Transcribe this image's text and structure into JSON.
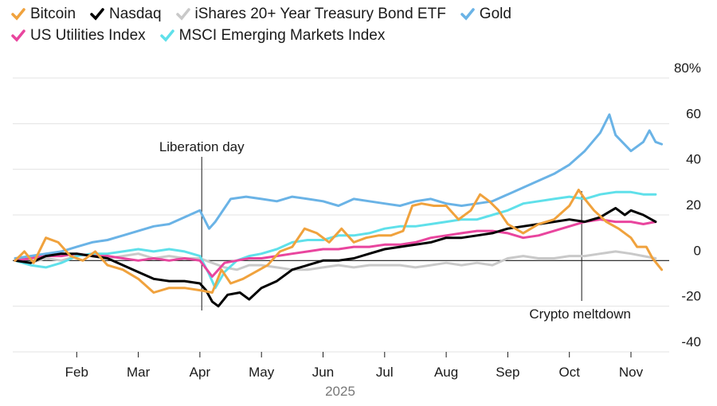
{
  "chart_data": {
    "type": "line",
    "title": "",
    "xlabel": "2025",
    "ylabel": "",
    "ylim": [
      -40,
      80
    ],
    "y_ticks": [
      {
        "value": 80,
        "label": "80%"
      },
      {
        "value": 60,
        "label": "60"
      },
      {
        "value": 40,
        "label": "40"
      },
      {
        "value": 20,
        "label": "20"
      },
      {
        "value": 0,
        "label": "0"
      },
      {
        "value": -20,
        "label": "-20"
      },
      {
        "value": -40,
        "label": "-40"
      }
    ],
    "x_ticks": [
      "Feb",
      "Mar",
      "Apr",
      "May",
      "Jun",
      "Jul",
      "Aug",
      "Sep",
      "Oct",
      "Nov"
    ],
    "year_label": "2025",
    "annotations": [
      {
        "label": "Liberation day",
        "month": 3.03
      },
      {
        "label": "Crypto meltdown",
        "month": 9.2
      }
    ],
    "series": [
      {
        "name": "iShares 20+ Year Treasury Bond ETF",
        "color": "#c9c9c9",
        "points": [
          [
            0.0,
            0
          ],
          [
            0.25,
            -1
          ],
          [
            0.5,
            1
          ],
          [
            0.75,
            0
          ],
          [
            1.0,
            2
          ],
          [
            1.25,
            3
          ],
          [
            1.5,
            1
          ],
          [
            1.75,
            2
          ],
          [
            2.0,
            3
          ],
          [
            2.25,
            1
          ],
          [
            2.5,
            2
          ],
          [
            2.75,
            1
          ],
          [
            3.0,
            1
          ],
          [
            3.2,
            -1
          ],
          [
            3.4,
            -3
          ],
          [
            3.6,
            -4
          ],
          [
            3.8,
            -2
          ],
          [
            4.0,
            -2
          ],
          [
            4.25,
            -3
          ],
          [
            4.5,
            -4
          ],
          [
            4.75,
            -4
          ],
          [
            5.0,
            -3
          ],
          [
            5.25,
            -2
          ],
          [
            5.5,
            -3
          ],
          [
            5.75,
            -2
          ],
          [
            6.0,
            -2
          ],
          [
            6.25,
            -2
          ],
          [
            6.5,
            -3
          ],
          [
            6.75,
            -2
          ],
          [
            7.0,
            -1
          ],
          [
            7.25,
            -2
          ],
          [
            7.5,
            -1
          ],
          [
            7.75,
            -2
          ],
          [
            8.0,
            1
          ],
          [
            8.25,
            2
          ],
          [
            8.5,
            1
          ],
          [
            8.75,
            1
          ],
          [
            9.0,
            2
          ],
          [
            9.25,
            2
          ],
          [
            9.5,
            3
          ],
          [
            9.75,
            4
          ],
          [
            10.0,
            3
          ],
          [
            10.2,
            2
          ],
          [
            10.4,
            1
          ]
        ]
      },
      {
        "name": "MSCI Emerging Markets Index",
        "color": "#5fe0ea",
        "points": [
          [
            0.0,
            0
          ],
          [
            0.25,
            -2
          ],
          [
            0.5,
            -3
          ],
          [
            0.75,
            -1
          ],
          [
            1.0,
            2
          ],
          [
            1.25,
            3
          ],
          [
            1.5,
            3
          ],
          [
            1.75,
            4
          ],
          [
            2.0,
            5
          ],
          [
            2.25,
            4
          ],
          [
            2.5,
            5
          ],
          [
            2.75,
            4
          ],
          [
            3.0,
            2
          ],
          [
            3.15,
            -6
          ],
          [
            3.25,
            -12
          ],
          [
            3.4,
            -5
          ],
          [
            3.6,
            0
          ],
          [
            3.8,
            2
          ],
          [
            4.0,
            3
          ],
          [
            4.25,
            5
          ],
          [
            4.5,
            8
          ],
          [
            4.75,
            9
          ],
          [
            5.0,
            9
          ],
          [
            5.25,
            11
          ],
          [
            5.5,
            11
          ],
          [
            5.75,
            12
          ],
          [
            6.0,
            14
          ],
          [
            6.25,
            15
          ],
          [
            6.5,
            15
          ],
          [
            6.75,
            16
          ],
          [
            7.0,
            17
          ],
          [
            7.25,
            18
          ],
          [
            7.5,
            18
          ],
          [
            7.75,
            20
          ],
          [
            8.0,
            22
          ],
          [
            8.25,
            25
          ],
          [
            8.5,
            26
          ],
          [
            8.75,
            27
          ],
          [
            9.0,
            28
          ],
          [
            9.25,
            27
          ],
          [
            9.5,
            29
          ],
          [
            9.75,
            30
          ],
          [
            10.0,
            30
          ],
          [
            10.2,
            29
          ],
          [
            10.4,
            29
          ]
        ]
      },
      {
        "name": "US Utilities Index",
        "color": "#e9459e",
        "points": [
          [
            0.0,
            0
          ],
          [
            0.25,
            1
          ],
          [
            0.5,
            2
          ],
          [
            0.75,
            2
          ],
          [
            1.0,
            3
          ],
          [
            1.25,
            2
          ],
          [
            1.5,
            2
          ],
          [
            1.75,
            1
          ],
          [
            2.0,
            0
          ],
          [
            2.25,
            1
          ],
          [
            2.5,
            0
          ],
          [
            2.75,
            1
          ],
          [
            3.0,
            0
          ],
          [
            3.2,
            -7
          ],
          [
            3.4,
            -1
          ],
          [
            3.6,
            0
          ],
          [
            3.8,
            1
          ],
          [
            4.0,
            1
          ],
          [
            4.25,
            2
          ],
          [
            4.5,
            3
          ],
          [
            4.75,
            4
          ],
          [
            5.0,
            5
          ],
          [
            5.25,
            5
          ],
          [
            5.5,
            6
          ],
          [
            5.75,
            6
          ],
          [
            6.0,
            7
          ],
          [
            6.25,
            7
          ],
          [
            6.5,
            8
          ],
          [
            6.75,
            10
          ],
          [
            7.0,
            11
          ],
          [
            7.25,
            12
          ],
          [
            7.5,
            13
          ],
          [
            7.75,
            13
          ],
          [
            8.0,
            12
          ],
          [
            8.25,
            10
          ],
          [
            8.5,
            11
          ],
          [
            8.75,
            13
          ],
          [
            9.0,
            15
          ],
          [
            9.25,
            17
          ],
          [
            9.5,
            18
          ],
          [
            9.75,
            17
          ],
          [
            10.0,
            17
          ],
          [
            10.2,
            16
          ],
          [
            10.4,
            17
          ]
        ]
      },
      {
        "name": "Gold",
        "color": "#6ab3e6",
        "points": [
          [
            0.0,
            1
          ],
          [
            0.25,
            2
          ],
          [
            0.5,
            3
          ],
          [
            0.75,
            4
          ],
          [
            1.0,
            6
          ],
          [
            1.25,
            8
          ],
          [
            1.5,
            9
          ],
          [
            1.75,
            11
          ],
          [
            2.0,
            13
          ],
          [
            2.25,
            15
          ],
          [
            2.5,
            16
          ],
          [
            2.75,
            19
          ],
          [
            3.0,
            22
          ],
          [
            3.15,
            14
          ],
          [
            3.25,
            17
          ],
          [
            3.5,
            27
          ],
          [
            3.75,
            28
          ],
          [
            4.0,
            27
          ],
          [
            4.25,
            26
          ],
          [
            4.5,
            28
          ],
          [
            4.75,
            27
          ],
          [
            5.0,
            26
          ],
          [
            5.25,
            24
          ],
          [
            5.5,
            27
          ],
          [
            5.75,
            26
          ],
          [
            6.0,
            25
          ],
          [
            6.25,
            24
          ],
          [
            6.5,
            26
          ],
          [
            6.75,
            27
          ],
          [
            7.0,
            25
          ],
          [
            7.25,
            24
          ],
          [
            7.5,
            25
          ],
          [
            7.75,
            26
          ],
          [
            8.0,
            29
          ],
          [
            8.25,
            32
          ],
          [
            8.5,
            35
          ],
          [
            8.75,
            38
          ],
          [
            9.0,
            42
          ],
          [
            9.25,
            48
          ],
          [
            9.5,
            56
          ],
          [
            9.65,
            64
          ],
          [
            9.75,
            55
          ],
          [
            10.0,
            48
          ],
          [
            10.2,
            52
          ],
          [
            10.3,
            57
          ],
          [
            10.4,
            52
          ],
          [
            10.5,
            51
          ]
        ]
      },
      {
        "name": "Nasdaq",
        "color": "#000000",
        "points": [
          [
            0.0,
            0
          ],
          [
            0.25,
            -1
          ],
          [
            0.5,
            2
          ],
          [
            0.75,
            3
          ],
          [
            1.0,
            3
          ],
          [
            1.25,
            2
          ],
          [
            1.5,
            1
          ],
          [
            1.75,
            -2
          ],
          [
            2.0,
            -5
          ],
          [
            2.25,
            -8
          ],
          [
            2.5,
            -9
          ],
          [
            2.75,
            -9
          ],
          [
            3.0,
            -10
          ],
          [
            3.1,
            -13
          ],
          [
            3.2,
            -18
          ],
          [
            3.3,
            -20
          ],
          [
            3.45,
            -15
          ],
          [
            3.65,
            -14
          ],
          [
            3.8,
            -17
          ],
          [
            4.0,
            -12
          ],
          [
            4.25,
            -9
          ],
          [
            4.5,
            -4
          ],
          [
            4.75,
            -2
          ],
          [
            5.0,
            0
          ],
          [
            5.25,
            0
          ],
          [
            5.5,
            1
          ],
          [
            5.75,
            3
          ],
          [
            6.0,
            5
          ],
          [
            6.25,
            6
          ],
          [
            6.5,
            7
          ],
          [
            6.75,
            8
          ],
          [
            7.0,
            10
          ],
          [
            7.25,
            10
          ],
          [
            7.5,
            11
          ],
          [
            7.75,
            12
          ],
          [
            8.0,
            14
          ],
          [
            8.25,
            15
          ],
          [
            8.5,
            16
          ],
          [
            8.75,
            17
          ],
          [
            9.0,
            18
          ],
          [
            9.25,
            17
          ],
          [
            9.5,
            19
          ],
          [
            9.75,
            23
          ],
          [
            9.9,
            20
          ],
          [
            10.0,
            22
          ],
          [
            10.2,
            20
          ],
          [
            10.4,
            17
          ]
        ]
      },
      {
        "name": "Bitcoin",
        "color": "#f0a23d",
        "points": [
          [
            0.0,
            0
          ],
          [
            0.15,
            4
          ],
          [
            0.3,
            -1
          ],
          [
            0.5,
            10
          ],
          [
            0.7,
            8
          ],
          [
            0.9,
            2
          ],
          [
            1.1,
            0
          ],
          [
            1.3,
            4
          ],
          [
            1.5,
            -2
          ],
          [
            1.75,
            -4
          ],
          [
            2.0,
            -8
          ],
          [
            2.25,
            -14
          ],
          [
            2.5,
            -12
          ],
          [
            2.75,
            -12
          ],
          [
            3.0,
            -13
          ],
          [
            3.2,
            -14
          ],
          [
            3.35,
            -4
          ],
          [
            3.5,
            -10
          ],
          [
            3.7,
            -8
          ],
          [
            3.9,
            -5
          ],
          [
            4.1,
            -2
          ],
          [
            4.3,
            4
          ],
          [
            4.5,
            6
          ],
          [
            4.7,
            14
          ],
          [
            4.9,
            12
          ],
          [
            5.1,
            8
          ],
          [
            5.3,
            14
          ],
          [
            5.5,
            8
          ],
          [
            5.7,
            10
          ],
          [
            5.9,
            11
          ],
          [
            6.1,
            11
          ],
          [
            6.3,
            13
          ],
          [
            6.45,
            24
          ],
          [
            6.6,
            25
          ],
          [
            6.8,
            24
          ],
          [
            7.0,
            24
          ],
          [
            7.2,
            18
          ],
          [
            7.4,
            22
          ],
          [
            7.55,
            29
          ],
          [
            7.7,
            26
          ],
          [
            7.85,
            22
          ],
          [
            8.0,
            16
          ],
          [
            8.25,
            12
          ],
          [
            8.5,
            16
          ],
          [
            8.75,
            18
          ],
          [
            9.0,
            24
          ],
          [
            9.15,
            31
          ],
          [
            9.25,
            27
          ],
          [
            9.4,
            22
          ],
          [
            9.6,
            17
          ],
          [
            9.8,
            14
          ],
          [
            10.0,
            10
          ],
          [
            10.1,
            6
          ],
          [
            10.25,
            6
          ],
          [
            10.35,
            1
          ],
          [
            10.5,
            -4
          ]
        ]
      }
    ]
  }
}
